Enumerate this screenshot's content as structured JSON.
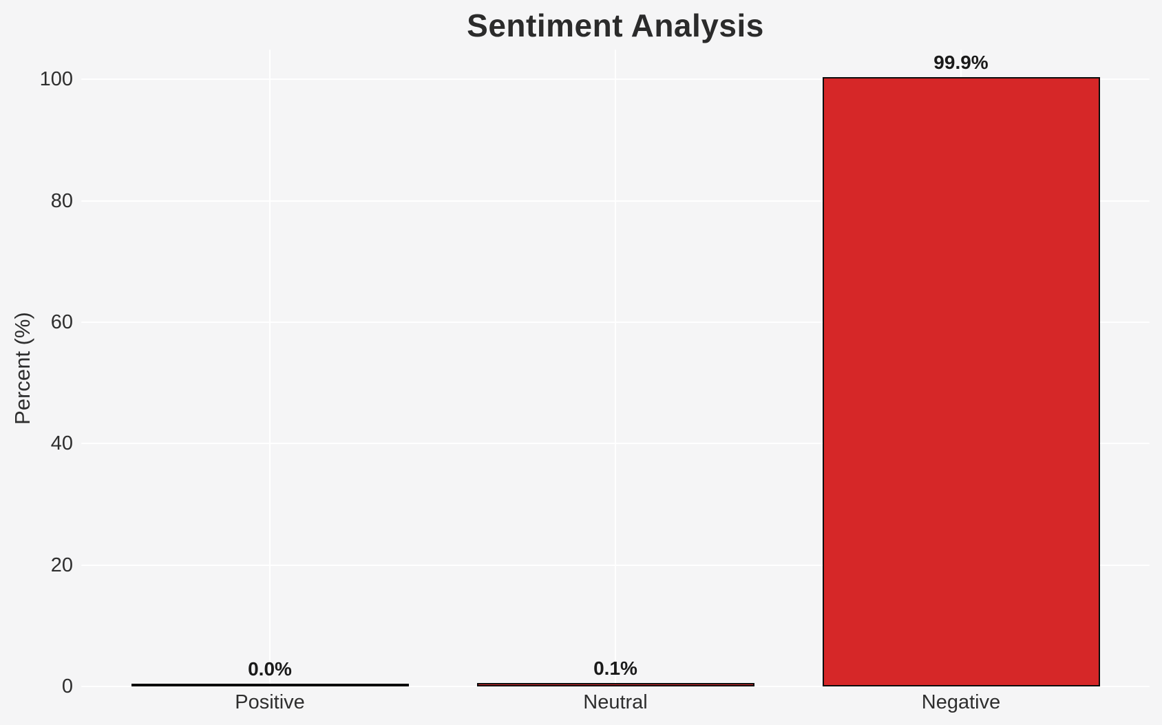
{
  "chart_data": {
    "type": "bar",
    "title": "Sentiment Analysis",
    "xlabel": "",
    "ylabel": "Percent (%)",
    "categories": [
      "Positive",
      "Neutral",
      "Negative"
    ],
    "values": [
      0.0,
      0.1,
      99.9
    ],
    "value_labels": [
      "0.0%",
      "0.1%",
      "99.9%"
    ],
    "ytick_labels": [
      "0",
      "20",
      "40",
      "60",
      "80",
      "100"
    ],
    "yticks": [
      0,
      20,
      40,
      60,
      80,
      100
    ],
    "ylim": [
      0,
      104.9
    ],
    "legend": "none",
    "grid": "horizontal and vertical white gridlines",
    "colors": {
      "bar_fill": "#d62728",
      "bar_edge": "#0c0c0c",
      "background": "#f5f5f6",
      "gridline": "#ffffff",
      "title_text": "#2b2b2b",
      "tick_text": "#2e2e2e",
      "value_label_text": "#1a1a1a"
    }
  }
}
